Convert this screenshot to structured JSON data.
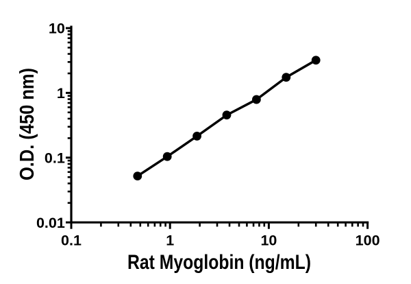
{
  "figure": {
    "background": "#ffffff",
    "description": "ELISA standard curve plot, black on white, log-log axes"
  },
  "chart_data": {
    "type": "scatter",
    "title": "",
    "xlabel": "Rat Myoglobin (ng/mL)",
    "ylabel": "O.D. (450 nm)",
    "xscale": "log",
    "yscale": "log",
    "xlim": [
      0.1,
      100
    ],
    "ylim": [
      0.01,
      10
    ],
    "x_tick_values": [
      0.1,
      1,
      10,
      100
    ],
    "x_tick_labels": [
      "0.1",
      "1",
      "10",
      "100"
    ],
    "y_tick_values": [
      10,
      1,
      0.1,
      0.01
    ],
    "y_tick_labels": [
      "10",
      "1",
      "0.1",
      "0.01"
    ],
    "minor_ticks": "log-decades-2-to-9",
    "grid": false,
    "legend": false,
    "x": [
      0.469,
      0.938,
      1.875,
      3.75,
      7.5,
      15,
      30
    ],
    "series": [
      {
        "name": "standard-curve",
        "marker": "filled-circle",
        "line": "solid",
        "values": [
          0.052,
          0.104,
          0.215,
          0.455,
          0.79,
          1.74,
          3.2
        ]
      }
    ],
    "colors": {
      "axis": "#000000",
      "line": "#000000",
      "marker": "#000000",
      "text": "#000000",
      "background": "#ffffff"
    }
  }
}
